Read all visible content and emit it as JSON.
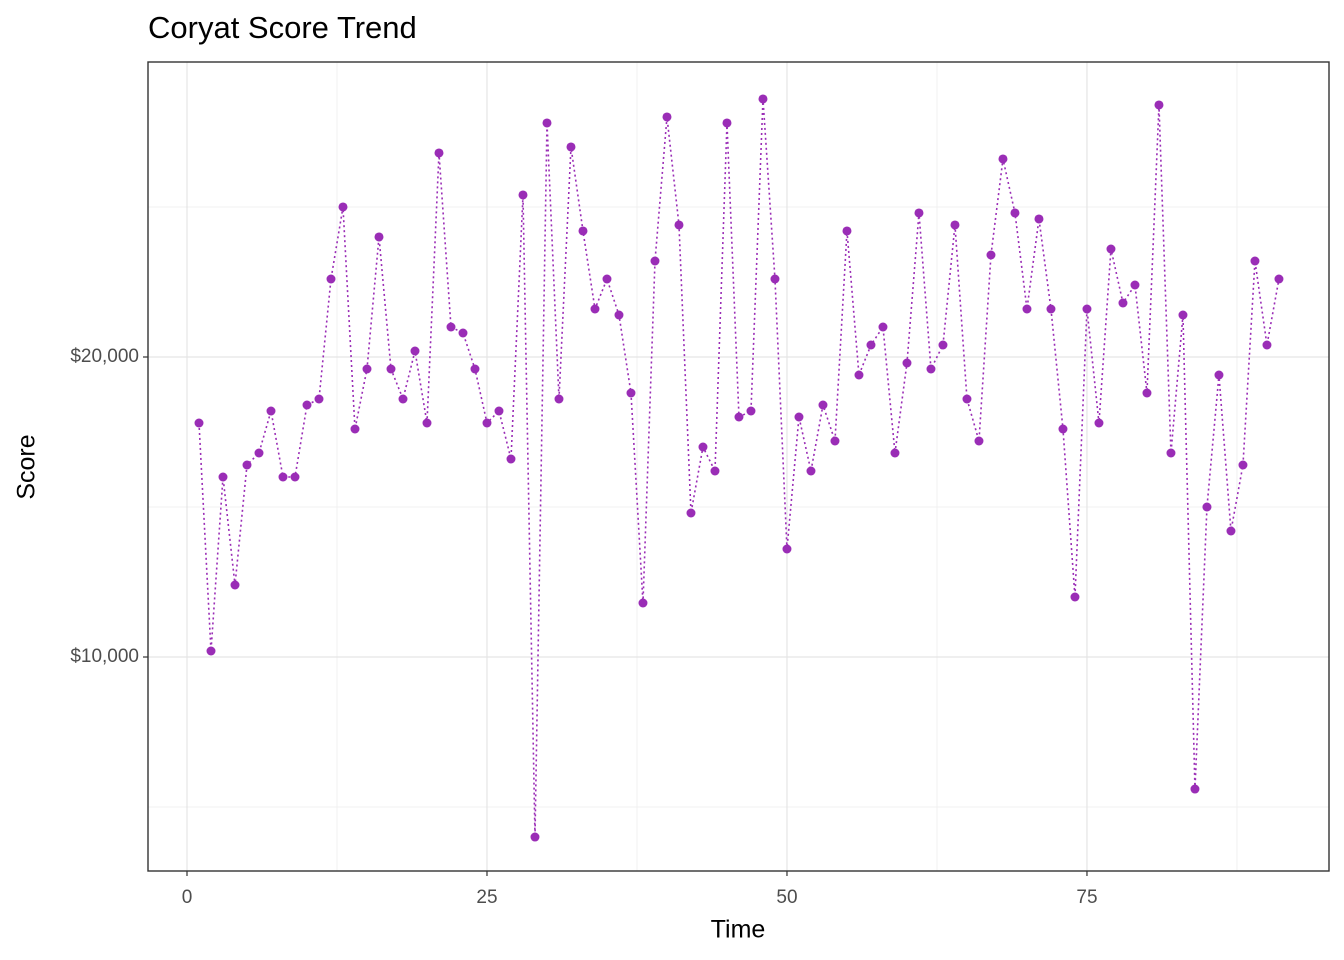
{
  "chart_data": {
    "type": "line",
    "title": "Coryat Score Trend",
    "x_label": "Time",
    "y_label": "Score",
    "x": [
      1,
      2,
      3,
      4,
      5,
      6,
      7,
      8,
      9,
      10,
      11,
      12,
      13,
      14,
      15,
      16,
      17,
      18,
      19,
      20,
      21,
      22,
      23,
      24,
      25,
      26,
      27,
      28,
      29,
      30,
      31,
      32,
      33,
      34,
      35,
      36,
      37,
      38,
      39,
      40,
      41,
      42,
      43,
      44,
      45,
      46,
      47,
      48,
      49,
      50,
      51,
      52,
      53,
      54,
      55,
      56,
      57,
      58,
      59,
      60,
      61,
      62,
      63,
      64,
      65,
      66,
      67,
      68,
      69,
      70,
      71,
      72,
      73,
      74,
      75,
      76,
      77,
      78,
      79,
      80,
      81,
      82,
      83,
      84,
      85,
      86,
      87,
      88,
      89,
      90,
      91
    ],
    "series": [
      {
        "color": "#9a2db6",
        "line_style": "dotted",
        "values": [
          17800,
          10200,
          16000,
          12400,
          16400,
          16800,
          18200,
          16000,
          16000,
          18400,
          18600,
          22600,
          25000,
          17600,
          19600,
          24000,
          19600,
          18600,
          20200,
          17800,
          26800,
          21000,
          20800,
          19600,
          17800,
          18200,
          16600,
          25400,
          4000,
          27800,
          18600,
          27000,
          24200,
          21600,
          22600,
          21400,
          18800,
          11800,
          23200,
          28000,
          24400,
          14800,
          17000,
          16200,
          27800,
          18000,
          18200,
          28600,
          22600,
          13600,
          18000,
          16200,
          18400,
          17200,
          24200,
          19400,
          20400,
          21000,
          16800,
          19800,
          24800,
          19600,
          20400,
          24400,
          18600,
          17200,
          23400,
          26600,
          24800,
          21600,
          24600,
          21600,
          17600,
          12000,
          21600,
          17800,
          23600,
          21800,
          22400,
          18800,
          28400,
          16800,
          21400,
          5600,
          15000,
          19400,
          14200,
          16400,
          23200,
          20400,
          22600
        ]
      }
    ],
    "xlim": [
      -3.25,
      95.17
    ],
    "ylim": [
      2867,
      29833
    ],
    "xticks": [
      0,
      25,
      50,
      75
    ],
    "yticks": [
      {
        "value": 10000,
        "label": "$10,000"
      },
      {
        "value": 20000,
        "label": "$20,000"
      }
    ],
    "grid": true
  }
}
